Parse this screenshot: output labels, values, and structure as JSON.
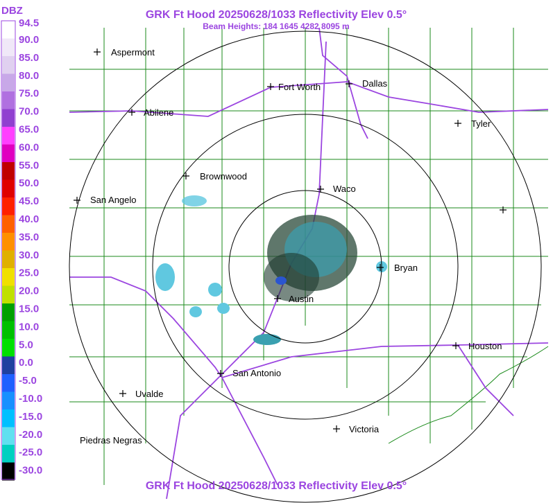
{
  "header": {
    "title": "GRK Ft Hood 20250628/1033 Reflectivity Elev 0.5°",
    "subtitle": "Beam Heights: 184 1645 4282 8095 m"
  },
  "legend": {
    "unit": "DBZ",
    "labels": [
      "94.5",
      "90.0",
      "85.0",
      "80.0",
      "75.0",
      "70.0",
      "65.0",
      "60.0",
      "55.0",
      "50.0",
      "45.0",
      "40.0",
      "35.0",
      "30.0",
      "25.0",
      "20.0",
      "15.0",
      "10.0",
      "5.0",
      "0.0",
      "-5.0",
      "-10.0",
      "-15.0",
      "-20.0",
      "-25.0",
      "-30.0"
    ]
  },
  "cities": [
    "Aspermont",
    "Fort Worth",
    "Dallas",
    "Abilene",
    "Tyler",
    "Brownwood",
    "Waco",
    "San Angelo",
    "Bryan",
    "Austin",
    "Houston",
    "San Antonio",
    "Uvalde",
    "Piedras Negras",
    "Victoria"
  ],
  "footer": {
    "title": "GRK Ft Hood 20250628/1033 Reflectivity Elev 0.5°"
  }
}
